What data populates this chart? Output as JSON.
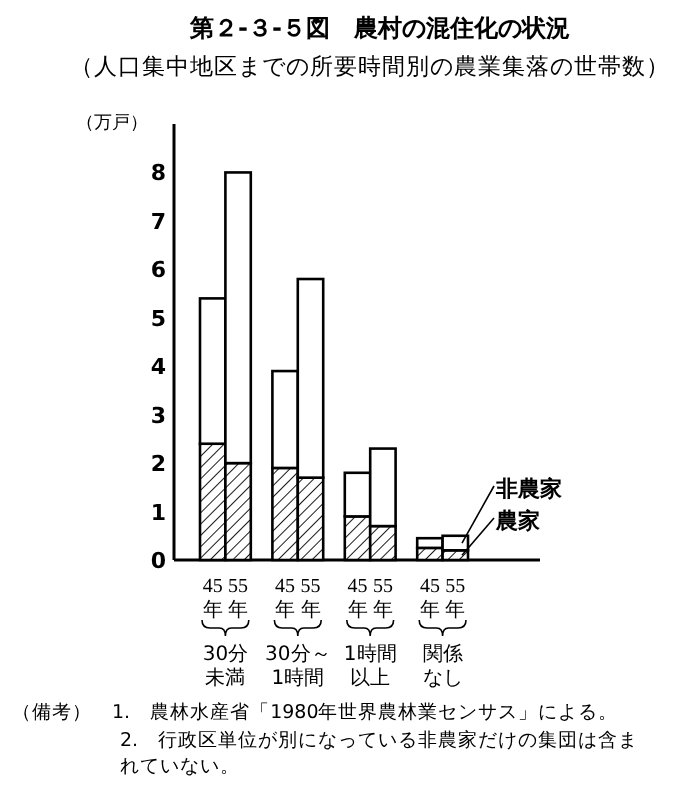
{
  "chart_data": {
    "type": "bar",
    "stacked": true,
    "title": "第２-３-５図　農村の混住化の状況",
    "subtitle": "（人口集中地区までの所要時間別の農業集落の世帯数）",
    "ylabel": "（万戸）",
    "categories": [
      "45年",
      "55年",
      "45年",
      "55年",
      "45年",
      "55年",
      "45年",
      "55年"
    ],
    "series": [
      {
        "name": "農家",
        "color": "#000000",
        "values": [
          2.4,
          2.0,
          1.9,
          1.7,
          0.9,
          0.7,
          0.25,
          0.2
        ]
      },
      {
        "name": "非農家",
        "color": "#ffffff",
        "values": [
          3.0,
          6.0,
          2.0,
          4.1,
          0.9,
          1.6,
          0.2,
          0.3
        ]
      }
    ],
    "ylim": [
      0,
      9
    ],
    "yticks": [
      0,
      1,
      2,
      3,
      4,
      5,
      6,
      7,
      8
    ],
    "grid": false,
    "legend": false,
    "annotations": [
      "30分未満",
      "30分～1時間",
      "1時間以上",
      "関係なし",
      "（備考）　1.　農林水産省「1980年世界農林業センサス」による。",
      "2.　行政区単位が別になっている非農家だけの集団は含まれていない。"
    ]
  }
}
